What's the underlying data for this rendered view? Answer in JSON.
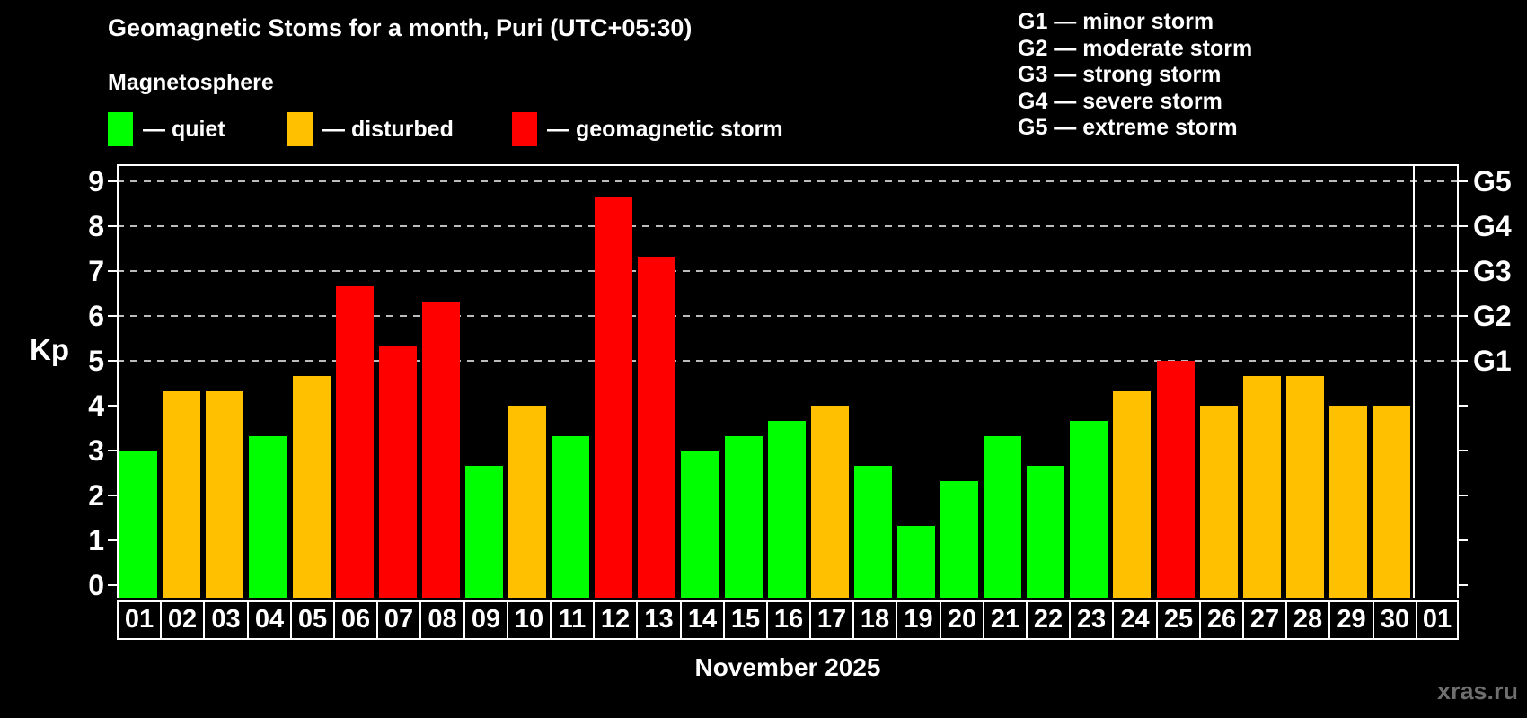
{
  "title": "Geomagnetic Stoms for a month, Puri (UTC+05:30)",
  "subtitle": "Magnetosphere",
  "legend": {
    "items": [
      {
        "key": "quiet",
        "label": "— quiet",
        "color": "#00ff00"
      },
      {
        "key": "disturbed",
        "label": "— disturbed",
        "color": "#ffc000"
      },
      {
        "key": "storm",
        "label": "— geomagnetic storm",
        "color": "#ff0000"
      }
    ]
  },
  "g_legend": [
    "G1 — minor storm",
    "G2 — moderate storm",
    "G3 — strong storm",
    "G4 — severe storm",
    "G5 — extreme storm"
  ],
  "x_axis_label": "November 2025",
  "watermark": "xras.ru",
  "chart_data": {
    "type": "bar",
    "title": "Geomagnetic Stoms for a month, Puri (UTC+05:30)",
    "ylabel": "Kp",
    "ylim": [
      0,
      9
    ],
    "y_ticks": [
      0,
      1,
      2,
      3,
      4,
      5,
      6,
      7,
      8,
      9
    ],
    "gridlines_at": [
      5,
      6,
      7,
      8,
      9
    ],
    "grid": "dashed, G-levels only",
    "right_axis": [
      {
        "label": "G1",
        "value": 5
      },
      {
        "label": "G2",
        "value": 6
      },
      {
        "label": "G3",
        "value": 7
      },
      {
        "label": "G4",
        "value": 8
      },
      {
        "label": "G5",
        "value": 9
      }
    ],
    "level_colors": {
      "quiet": "#00ff00",
      "disturbed": "#ffc000",
      "storm": "#ff0000"
    },
    "month_label": "November 2025",
    "days": [
      {
        "day": "01",
        "kp": 3.0,
        "level": "quiet"
      },
      {
        "day": "02",
        "kp": 4.33,
        "level": "disturbed"
      },
      {
        "day": "03",
        "kp": 4.33,
        "level": "disturbed"
      },
      {
        "day": "04",
        "kp": 3.33,
        "level": "quiet"
      },
      {
        "day": "05",
        "kp": 4.67,
        "level": "disturbed"
      },
      {
        "day": "06",
        "kp": 6.67,
        "level": "storm"
      },
      {
        "day": "07",
        "kp": 5.33,
        "level": "storm"
      },
      {
        "day": "08",
        "kp": 6.33,
        "level": "storm"
      },
      {
        "day": "09",
        "kp": 2.67,
        "level": "quiet"
      },
      {
        "day": "10",
        "kp": 4.0,
        "level": "disturbed"
      },
      {
        "day": "11",
        "kp": 3.33,
        "level": "quiet"
      },
      {
        "day": "12",
        "kp": 8.67,
        "level": "storm"
      },
      {
        "day": "13",
        "kp": 7.33,
        "level": "storm"
      },
      {
        "day": "14",
        "kp": 3.0,
        "level": "quiet"
      },
      {
        "day": "15",
        "kp": 3.33,
        "level": "quiet"
      },
      {
        "day": "16",
        "kp": 3.67,
        "level": "quiet"
      },
      {
        "day": "17",
        "kp": 4.0,
        "level": "disturbed"
      },
      {
        "day": "18",
        "kp": 2.67,
        "level": "quiet"
      },
      {
        "day": "19",
        "kp": 1.33,
        "level": "quiet"
      },
      {
        "day": "20",
        "kp": 2.33,
        "level": "quiet"
      },
      {
        "day": "21",
        "kp": 3.33,
        "level": "quiet"
      },
      {
        "day": "22",
        "kp": 2.67,
        "level": "quiet"
      },
      {
        "day": "23",
        "kp": 3.67,
        "level": "quiet"
      },
      {
        "day": "24",
        "kp": 4.33,
        "level": "disturbed"
      },
      {
        "day": "25",
        "kp": 5.0,
        "level": "storm"
      },
      {
        "day": "26",
        "kp": 4.0,
        "level": "disturbed"
      },
      {
        "day": "27",
        "kp": 4.67,
        "level": "disturbed"
      },
      {
        "day": "28",
        "kp": 4.67,
        "level": "disturbed"
      },
      {
        "day": "29",
        "kp": 4.0,
        "level": "disturbed"
      },
      {
        "day": "30",
        "kp": 4.0,
        "level": "disturbed"
      },
      {
        "day": "01",
        "kp": null,
        "level": null
      }
    ]
  }
}
